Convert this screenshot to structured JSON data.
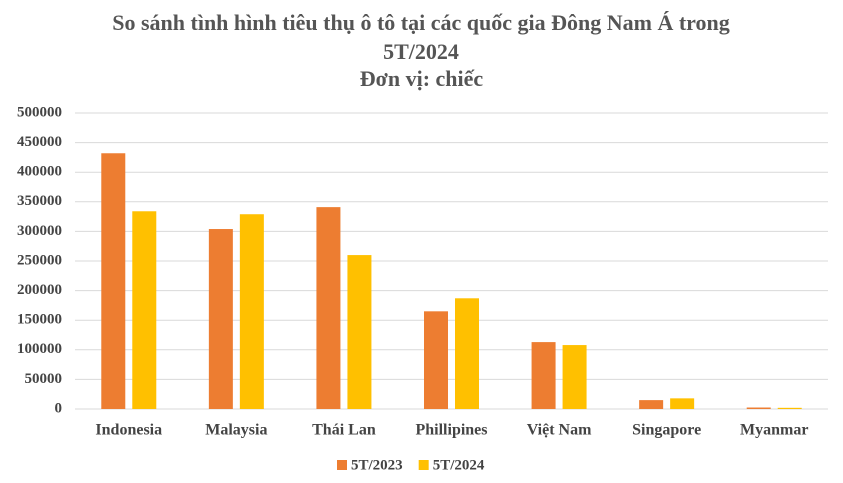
{
  "chart_data": {
    "type": "bar",
    "title": "So sánh tình hình tiêu thụ ô tô tại các quốc gia Đông Nam Á trong 5T/2024",
    "subtitle": "Đơn vị: chiếc",
    "categories": [
      "Indonesia",
      "Malaysia",
      "Thái Lan",
      "Phillipines",
      "Việt Nam",
      "Singapore",
      "Myanmar"
    ],
    "series": [
      {
        "name": "5T/2023",
        "color": "#ed7d31",
        "values": [
          432000,
          304000,
          341000,
          165000,
          113000,
          15000,
          2500
        ]
      },
      {
        "name": "5T/2024",
        "color": "#ffc000",
        "values": [
          334000,
          329000,
          260000,
          187000,
          108000,
          18000,
          2000
        ]
      }
    ],
    "ylim": [
      0,
      500000
    ],
    "yticks": [
      0,
      50000,
      100000,
      150000,
      200000,
      250000,
      300000,
      350000,
      400000,
      450000,
      500000
    ],
    "grid": true,
    "legend": "bottom"
  }
}
